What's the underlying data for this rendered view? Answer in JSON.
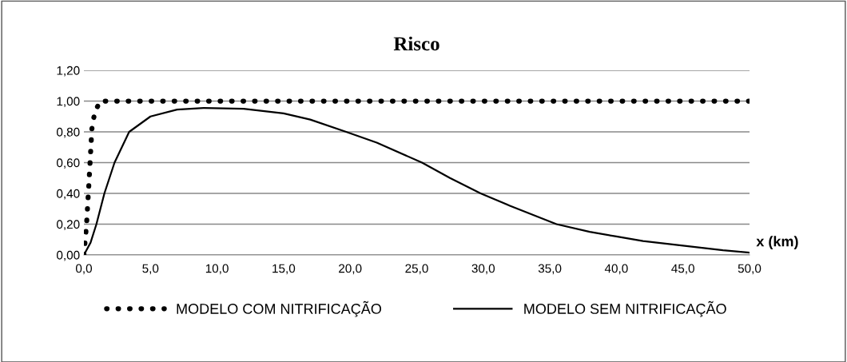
{
  "chart_data": {
    "type": "line",
    "title": "Risco",
    "xlabel": "x (km)",
    "xlim": [
      0,
      50
    ],
    "xticks": [
      {
        "value": 0,
        "label": "0,0"
      },
      {
        "value": 5,
        "label": "5,0"
      },
      {
        "value": 10,
        "label": "10,0"
      },
      {
        "value": 15,
        "label": "15,0"
      },
      {
        "value": 20,
        "label": "20,0"
      },
      {
        "value": 25,
        "label": "25,0"
      },
      {
        "value": 30,
        "label": "30,0"
      },
      {
        "value": 35,
        "label": "35,0"
      },
      {
        "value": 40,
        "label": "40,0"
      },
      {
        "value": 45,
        "label": "45,0"
      },
      {
        "value": 50,
        "label": "50,0"
      }
    ],
    "ylim": [
      0,
      1.2
    ],
    "yticks": [
      {
        "value": 0,
        "label": "0,00"
      },
      {
        "value": 0.2,
        "label": "0,20"
      },
      {
        "value": 0.4,
        "label": "0,40"
      },
      {
        "value": 0.6,
        "label": "0,60"
      },
      {
        "value": 0.8,
        "label": "0,80"
      },
      {
        "value": 1.0,
        "label": "1,00"
      },
      {
        "value": 1.2,
        "label": "1,20"
      }
    ],
    "grid": "y",
    "legend": "bottom",
    "series": [
      {
        "name": "MODELO COM NITRIFICAÇÃO",
        "color": "#000000",
        "line_style": "dotted",
        "x": [
          0,
          0.2,
          0.4,
          0.6,
          0.8,
          1.2,
          50
        ],
        "values": [
          0,
          0.2,
          0.5,
          0.82,
          0.92,
          1.0,
          1.0
        ]
      },
      {
        "name": "MODELO SEM NITRIFICAÇÃO",
        "color": "#000000",
        "line_style": "solid",
        "x": [
          0,
          0.5,
          0.94,
          1.54,
          2.3,
          3.4,
          5,
          7,
          9,
          12,
          15,
          17,
          19.7,
          22,
          25.4,
          27.5,
          29.8,
          32,
          35.5,
          38,
          40,
          42,
          45,
          48,
          50
        ],
        "values": [
          0,
          0.08,
          0.2,
          0.4,
          0.6,
          0.8,
          0.9,
          0.945,
          0.955,
          0.95,
          0.92,
          0.88,
          0.8,
          0.73,
          0.6,
          0.5,
          0.4,
          0.32,
          0.2,
          0.15,
          0.12,
          0.09,
          0.06,
          0.03,
          0.015
        ]
      }
    ]
  }
}
